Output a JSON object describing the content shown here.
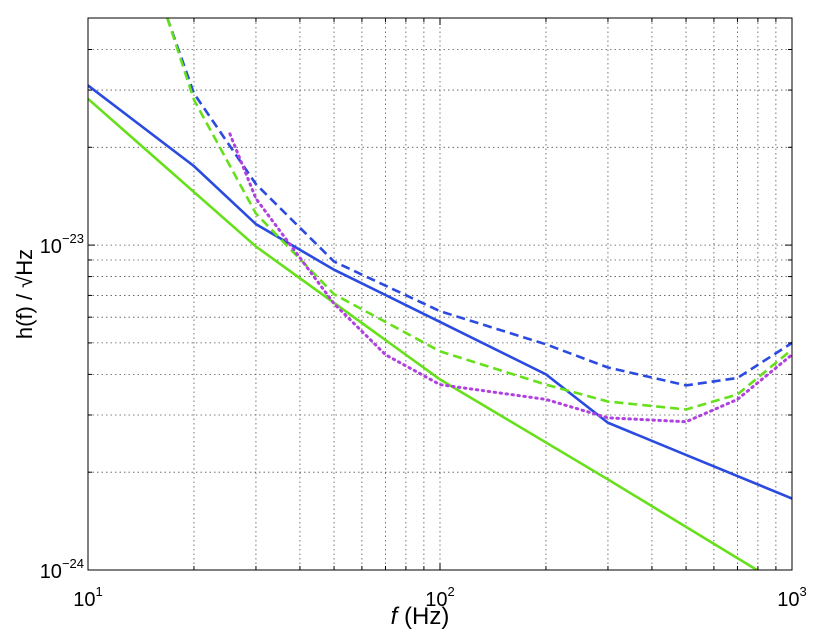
{
  "chart_data": {
    "type": "line",
    "xlabel_symbol": "f",
    "xlabel_unit": "(Hz)",
    "ylabel": "h(f) / √Hz",
    "xscale": "log",
    "yscale": "log",
    "grid": true,
    "xlim": [
      10,
      1000
    ],
    "ylim": [
      1e-24,
      5e-23
    ],
    "xticks": [
      {
        "value": 10,
        "label": "10",
        "exp": "1"
      },
      {
        "value": 100,
        "label": "10",
        "exp": "2"
      },
      {
        "value": 1000,
        "label": "10",
        "exp": "3"
      }
    ],
    "yticks": [
      {
        "value": 1e-24,
        "label": "10",
        "exp": "−24"
      },
      {
        "value": 1e-23,
        "label": "10",
        "exp": "−23"
      }
    ],
    "xminor": [
      20,
      30,
      40,
      50,
      60,
      70,
      80,
      90,
      200,
      300,
      400,
      500,
      600,
      700,
      800,
      900
    ],
    "yminor": [
      2e-24,
      3e-24,
      4e-24,
      5e-24,
      6e-24,
      7e-24,
      8e-24,
      9e-24,
      2e-23,
      3e-23,
      4e-23
    ],
    "series": [
      {
        "color": "#2b4be0",
        "dash": "solid",
        "x": [
          10,
          20,
          30,
          50,
          100,
          200,
          300,
          500,
          1000
        ],
        "values": [
          3.1e-23,
          1.75e-23,
          1.16e-23,
          8.4e-24,
          5.8e-24,
          4e-24,
          2.84e-24,
          2.26e-24,
          1.66e-24
        ]
      },
      {
        "color": "#66e01a",
        "dash": "solid",
        "x": [
          10,
          30,
          100,
          300,
          795
        ],
        "values": [
          2.82e-23,
          9.9e-24,
          3.86e-24,
          1.9e-24,
          1e-24
        ]
      },
      {
        "color": "#2b4be0",
        "dash": "dashed",
        "x": [
          16.8,
          20,
          30,
          50,
          100,
          200,
          300,
          500,
          700,
          1000
        ],
        "values": [
          5e-23,
          2.93e-23,
          1.54e-23,
          8.9e-24,
          6.26e-24,
          4.95e-24,
          4.2e-24,
          3.7e-24,
          3.9e-24,
          5e-24
        ]
      },
      {
        "color": "#66e01a",
        "dash": "dashed",
        "x": [
          16.8,
          20,
          30,
          50,
          100,
          200,
          300,
          500,
          700,
          1000
        ],
        "values": [
          5e-23,
          2.8e-23,
          1.25e-23,
          7.06e-24,
          4.71e-24,
          3.72e-24,
          3.3e-24,
          3.12e-24,
          3.47e-24,
          4.77e-24
        ]
      },
      {
        "color": "#b040e0",
        "dash": "dotted",
        "x": [
          25.3,
          30,
          50,
          70,
          100,
          200,
          300,
          500,
          700,
          1000
        ],
        "values": [
          2.2e-23,
          1.39e-23,
          6.6e-24,
          4.6e-24,
          3.72e-24,
          3.35e-24,
          2.94e-24,
          2.86e-24,
          3.35e-24,
          4.6e-24
        ]
      }
    ]
  }
}
